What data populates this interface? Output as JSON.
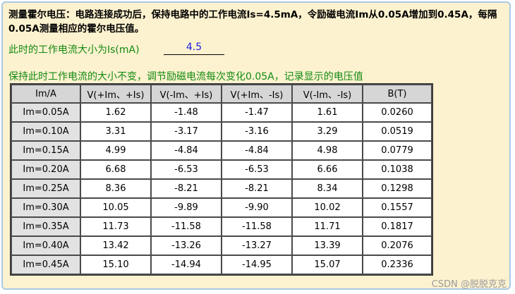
{
  "instructions": "测量霍尔电压：电路连接成功后，保持电路中的工作电流Is=4.5mA，令励磁电流Im从0.05A增加到0.45A，每隔0.05A测量相应的霍尔电压值。",
  "current_prompt": {
    "label": "此时的工作电流大小为Is(mA)",
    "value": "4.5"
  },
  "table_caption": "保持此时工作电流的大小不变，调节励磁电流每次变化0.05A，记录显示的电压值",
  "table": {
    "headers": [
      "Im/A",
      "V(+Im、+Is)",
      "V(-Im、+Is)",
      "V(+Im、-Is)",
      "V(-Im、-Is)",
      "B(T)"
    ],
    "rows": [
      [
        "Im=0.05A",
        "1.62",
        "-1.48",
        "-1.47",
        "1.61",
        "0.0260"
      ],
      [
        "Im=0.10A",
        "3.31",
        "-3.17",
        "-3.16",
        "3.29",
        "0.0519"
      ],
      [
        "Im=0.15A",
        "4.99",
        "-4.84",
        "-4.84",
        "4.98",
        "0.0779"
      ],
      [
        "Im=0.20A",
        "6.68",
        "-6.53",
        "-6.53",
        "6.66",
        "0.1038"
      ],
      [
        "Im=0.25A",
        "8.36",
        "-8.21",
        "-8.21",
        "8.34",
        "0.1298"
      ],
      [
        "Im=0.30A",
        "10.05",
        "-9.89",
        "-9.90",
        "10.02",
        "0.1557"
      ],
      [
        "Im=0.35A",
        "11.73",
        "-11.58",
        "-11.58",
        "11.71",
        "0.1817"
      ],
      [
        "Im=0.40A",
        "13.42",
        "-13.26",
        "-13.27",
        "13.39",
        "0.2076"
      ],
      [
        "Im=0.45A",
        "15.10",
        "-14.94",
        "-14.95",
        "15.07",
        "0.2336"
      ]
    ]
  },
  "watermark": "CSDN @脱脱克克",
  "colors": {
    "panel_background": "#fdf2cf",
    "panel_border": "#a9c8e6",
    "green_text": "#128a12",
    "blue_value": "#1f1fe0"
  }
}
